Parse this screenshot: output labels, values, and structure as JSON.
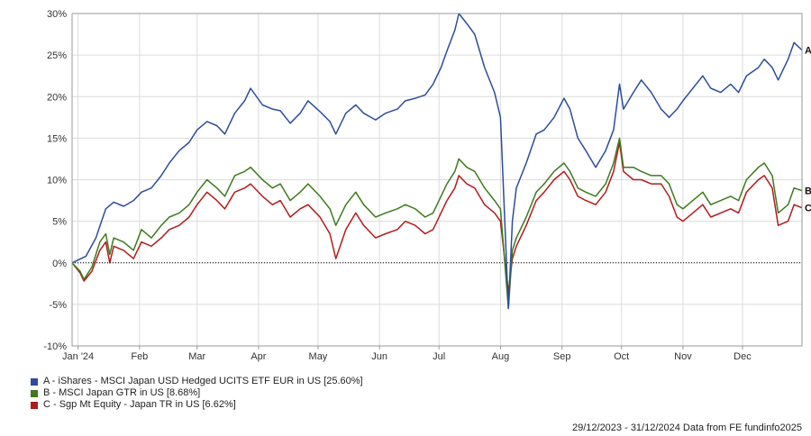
{
  "chart_data": {
    "type": "line",
    "title": "",
    "xlabel": "",
    "ylabel": "",
    "ylim": [
      -10,
      30
    ],
    "yticks": [
      -10,
      -5,
      0,
      5,
      10,
      15,
      20,
      25,
      30
    ],
    "ytick_labels": [
      "-10%",
      "-5%",
      "0%",
      "5%",
      "10%",
      "15%",
      "20%",
      "25%",
      "30%"
    ],
    "x_range": [
      "2023-12-29",
      "2024-12-31"
    ],
    "xticks": [
      {
        "date": "2024-01-01",
        "label": "Jan '24"
      },
      {
        "date": "2024-02-01",
        "label": "Feb"
      },
      {
        "date": "2024-03-01",
        "label": "Mar"
      },
      {
        "date": "2024-04-01",
        "label": "Apr"
      },
      {
        "date": "2024-05-01",
        "label": "May"
      },
      {
        "date": "2024-06-01",
        "label": "Jun"
      },
      {
        "date": "2024-07-01",
        "label": "Jul"
      },
      {
        "date": "2024-08-01",
        "label": "Aug"
      },
      {
        "date": "2024-09-01",
        "label": "Sep"
      },
      {
        "date": "2024-10-01",
        "label": "Oct"
      },
      {
        "date": "2024-11-01",
        "label": "Nov"
      },
      {
        "date": "2024-12-01",
        "label": "Dec"
      }
    ],
    "grid": true,
    "zero_line": "dotted",
    "legend_position": "bottom-left",
    "series": [
      {
        "name": "A - iShares - MSCI Japan USD Hedged UCITS ETF EUR in US [25.60%]",
        "end_label": "A",
        "color": "#2c4d9e",
        "points": [
          [
            "2023-12-29",
            0
          ],
          [
            "2024-01-05",
            0.8
          ],
          [
            "2024-01-10",
            3
          ],
          [
            "2024-01-15",
            6.5
          ],
          [
            "2024-01-19",
            7.3
          ],
          [
            "2024-01-24",
            6.8
          ],
          [
            "2024-01-29",
            7.5
          ],
          [
            "2024-02-02",
            8.5
          ],
          [
            "2024-02-07",
            9
          ],
          [
            "2024-02-12",
            10.5
          ],
          [
            "2024-02-16",
            12
          ],
          [
            "2024-02-21",
            13.5
          ],
          [
            "2024-02-26",
            14.5
          ],
          [
            "2024-03-01",
            16
          ],
          [
            "2024-03-06",
            17
          ],
          [
            "2024-03-11",
            16.5
          ],
          [
            "2024-03-15",
            15.5
          ],
          [
            "2024-03-20",
            18
          ],
          [
            "2024-03-25",
            19.5
          ],
          [
            "2024-03-28",
            21
          ],
          [
            "2024-04-03",
            19
          ],
          [
            "2024-04-08",
            18.5
          ],
          [
            "2024-04-12",
            18.3
          ],
          [
            "2024-04-17",
            16.8
          ],
          [
            "2024-04-22",
            18
          ],
          [
            "2024-04-26",
            19.5
          ],
          [
            "2024-05-02",
            18.2
          ],
          [
            "2024-05-07",
            17
          ],
          [
            "2024-05-10",
            15.5
          ],
          [
            "2024-05-15",
            18
          ],
          [
            "2024-05-20",
            19
          ],
          [
            "2024-05-24",
            18
          ],
          [
            "2024-05-30",
            17.2
          ],
          [
            "2024-06-04",
            18
          ],
          [
            "2024-06-10",
            18.5
          ],
          [
            "2024-06-14",
            19.5
          ],
          [
            "2024-06-19",
            19.8
          ],
          [
            "2024-06-24",
            20.2
          ],
          [
            "2024-06-28",
            21.5
          ],
          [
            "2024-07-02",
            23.5
          ],
          [
            "2024-07-05",
            25.5
          ],
          [
            "2024-07-09",
            28
          ],
          [
            "2024-07-11",
            30
          ],
          [
            "2024-07-15",
            28.8
          ],
          [
            "2024-07-19",
            27.5
          ],
          [
            "2024-07-24",
            23.5
          ],
          [
            "2024-07-29",
            20.5
          ],
          [
            "2024-08-01",
            17.5
          ],
          [
            "2024-08-05",
            -5.5
          ],
          [
            "2024-08-07",
            5
          ],
          [
            "2024-08-09",
            9
          ],
          [
            "2024-08-14",
            12
          ],
          [
            "2024-08-19",
            15.5
          ],
          [
            "2024-08-23",
            16
          ],
          [
            "2024-08-28",
            17.5
          ],
          [
            "2024-09-02",
            19.8
          ],
          [
            "2024-09-05",
            18.5
          ],
          [
            "2024-09-09",
            15
          ],
          [
            "2024-09-13",
            13.5
          ],
          [
            "2024-09-18",
            11.5
          ],
          [
            "2024-09-23",
            13.5
          ],
          [
            "2024-09-27",
            16
          ],
          [
            "2024-09-30",
            21.5
          ],
          [
            "2024-10-02",
            18.5
          ],
          [
            "2024-10-07",
            20.5
          ],
          [
            "2024-10-11",
            22
          ],
          [
            "2024-10-16",
            20.5
          ],
          [
            "2024-10-21",
            18.5
          ],
          [
            "2024-10-25",
            17.5
          ],
          [
            "2024-10-29",
            18.5
          ],
          [
            "2024-11-01",
            19.5
          ],
          [
            "2024-11-06",
            21
          ],
          [
            "2024-11-11",
            22.5
          ],
          [
            "2024-11-15",
            21
          ],
          [
            "2024-11-20",
            20.5
          ],
          [
            "2024-11-25",
            21.5
          ],
          [
            "2024-11-29",
            20.5
          ],
          [
            "2024-12-03",
            22.5
          ],
          [
            "2024-12-09",
            23.5
          ],
          [
            "2024-12-12",
            24.5
          ],
          [
            "2024-12-16",
            23.5
          ],
          [
            "2024-12-19",
            22
          ],
          [
            "2024-12-24",
            24.5
          ],
          [
            "2024-12-27",
            26.5
          ],
          [
            "2024-12-31",
            25.6
          ]
        ]
      },
      {
        "name": "B - MSCI Japan GTR in US [8.68%]",
        "end_label": "B",
        "color": "#3f7a1e",
        "points": [
          [
            "2023-12-29",
            0
          ],
          [
            "2024-01-02",
            -1
          ],
          [
            "2024-01-04",
            -2
          ],
          [
            "2024-01-08",
            -0.5
          ],
          [
            "2024-01-12",
            2.5
          ],
          [
            "2024-01-15",
            3.5
          ],
          [
            "2024-01-17",
            1
          ],
          [
            "2024-01-19",
            3
          ],
          [
            "2024-01-24",
            2.5
          ],
          [
            "2024-01-29",
            1.5
          ],
          [
            "2024-02-02",
            4
          ],
          [
            "2024-02-07",
            3
          ],
          [
            "2024-02-12",
            4.5
          ],
          [
            "2024-02-16",
            5.5
          ],
          [
            "2024-02-21",
            6
          ],
          [
            "2024-02-26",
            7
          ],
          [
            "2024-03-01",
            8.5
          ],
          [
            "2024-03-06",
            10
          ],
          [
            "2024-03-11",
            9
          ],
          [
            "2024-03-15",
            8
          ],
          [
            "2024-03-20",
            10.5
          ],
          [
            "2024-03-25",
            11
          ],
          [
            "2024-03-28",
            11.5
          ],
          [
            "2024-04-03",
            10
          ],
          [
            "2024-04-08",
            9
          ],
          [
            "2024-04-12",
            9.5
          ],
          [
            "2024-04-17",
            7.5
          ],
          [
            "2024-04-22",
            8.5
          ],
          [
            "2024-04-26",
            9.5
          ],
          [
            "2024-05-02",
            8
          ],
          [
            "2024-05-07",
            6.5
          ],
          [
            "2024-05-10",
            4.5
          ],
          [
            "2024-05-15",
            7
          ],
          [
            "2024-05-20",
            8.5
          ],
          [
            "2024-05-24",
            7
          ],
          [
            "2024-05-30",
            5.5
          ],
          [
            "2024-06-04",
            6
          ],
          [
            "2024-06-10",
            6.5
          ],
          [
            "2024-06-14",
            7
          ],
          [
            "2024-06-19",
            6.5
          ],
          [
            "2024-06-24",
            5.5
          ],
          [
            "2024-06-28",
            6
          ],
          [
            "2024-07-02",
            8
          ],
          [
            "2024-07-05",
            9.5
          ],
          [
            "2024-07-09",
            11
          ],
          [
            "2024-07-11",
            12.5
          ],
          [
            "2024-07-15",
            11.5
          ],
          [
            "2024-07-19",
            11
          ],
          [
            "2024-07-24",
            9
          ],
          [
            "2024-07-29",
            7.5
          ],
          [
            "2024-08-01",
            6.5
          ],
          [
            "2024-08-05",
            -5.5
          ],
          [
            "2024-08-07",
            1.5
          ],
          [
            "2024-08-09",
            3
          ],
          [
            "2024-08-14",
            5.5
          ],
          [
            "2024-08-19",
            8.5
          ],
          [
            "2024-08-23",
            9.5
          ],
          [
            "2024-08-28",
            11
          ],
          [
            "2024-09-02",
            12
          ],
          [
            "2024-09-05",
            11
          ],
          [
            "2024-09-09",
            9
          ],
          [
            "2024-09-13",
            8.5
          ],
          [
            "2024-09-18",
            8
          ],
          [
            "2024-09-23",
            9.5
          ],
          [
            "2024-09-27",
            12
          ],
          [
            "2024-09-30",
            15
          ],
          [
            "2024-10-02",
            11.5
          ],
          [
            "2024-10-07",
            11.5
          ],
          [
            "2024-10-11",
            11
          ],
          [
            "2024-10-16",
            10.5
          ],
          [
            "2024-10-21",
            10.5
          ],
          [
            "2024-10-25",
            9.5
          ],
          [
            "2024-10-29",
            7
          ],
          [
            "2024-11-01",
            6.5
          ],
          [
            "2024-11-06",
            7.5
          ],
          [
            "2024-11-11",
            8.5
          ],
          [
            "2024-11-15",
            7
          ],
          [
            "2024-11-20",
            7.5
          ],
          [
            "2024-11-25",
            8
          ],
          [
            "2024-11-29",
            7.5
          ],
          [
            "2024-12-03",
            10
          ],
          [
            "2024-12-09",
            11.5
          ],
          [
            "2024-12-12",
            12
          ],
          [
            "2024-12-16",
            10.5
          ],
          [
            "2024-12-19",
            6
          ],
          [
            "2024-12-24",
            7
          ],
          [
            "2024-12-27",
            9
          ],
          [
            "2024-12-31",
            8.68
          ]
        ]
      },
      {
        "name": "C - Sgp Mt Equity - Japan TR in US [6.62%]",
        "end_label": "C",
        "color": "#b31b1b",
        "points": [
          [
            "2023-12-29",
            0
          ],
          [
            "2024-01-02",
            -1.2
          ],
          [
            "2024-01-04",
            -2.2
          ],
          [
            "2024-01-08",
            -1
          ],
          [
            "2024-01-12",
            1.5
          ],
          [
            "2024-01-15",
            2.5
          ],
          [
            "2024-01-17",
            0
          ],
          [
            "2024-01-19",
            2
          ],
          [
            "2024-01-24",
            1.5
          ],
          [
            "2024-01-29",
            0.5
          ],
          [
            "2024-02-02",
            2.5
          ],
          [
            "2024-02-07",
            2
          ],
          [
            "2024-02-12",
            3
          ],
          [
            "2024-02-16",
            4
          ],
          [
            "2024-02-21",
            4.5
          ],
          [
            "2024-02-26",
            5.5
          ],
          [
            "2024-03-01",
            7
          ],
          [
            "2024-03-06",
            8.5
          ],
          [
            "2024-03-11",
            7.5
          ],
          [
            "2024-03-15",
            6.5
          ],
          [
            "2024-03-20",
            8.5
          ],
          [
            "2024-03-25",
            9
          ],
          [
            "2024-03-28",
            9.5
          ],
          [
            "2024-04-03",
            8
          ],
          [
            "2024-04-08",
            7
          ],
          [
            "2024-04-12",
            7.5
          ],
          [
            "2024-04-17",
            5.5
          ],
          [
            "2024-04-22",
            6.5
          ],
          [
            "2024-04-26",
            7
          ],
          [
            "2024-05-02",
            5.5
          ],
          [
            "2024-05-07",
            3.5
          ],
          [
            "2024-05-10",
            0.5
          ],
          [
            "2024-05-15",
            4
          ],
          [
            "2024-05-20",
            6
          ],
          [
            "2024-05-24",
            4.5
          ],
          [
            "2024-05-30",
            3
          ],
          [
            "2024-06-04",
            3.5
          ],
          [
            "2024-06-10",
            4
          ],
          [
            "2024-06-14",
            5
          ],
          [
            "2024-06-19",
            4.5
          ],
          [
            "2024-06-24",
            3.5
          ],
          [
            "2024-06-28",
            4
          ],
          [
            "2024-07-02",
            6
          ],
          [
            "2024-07-05",
            7.5
          ],
          [
            "2024-07-09",
            9
          ],
          [
            "2024-07-11",
            10.5
          ],
          [
            "2024-07-15",
            9.5
          ],
          [
            "2024-07-19",
            9
          ],
          [
            "2024-07-24",
            7
          ],
          [
            "2024-07-29",
            6
          ],
          [
            "2024-08-01",
            5
          ],
          [
            "2024-08-05",
            -3.5
          ],
          [
            "2024-08-07",
            0.5
          ],
          [
            "2024-08-09",
            2
          ],
          [
            "2024-08-14",
            4.5
          ],
          [
            "2024-08-19",
            7.5
          ],
          [
            "2024-08-23",
            8.5
          ],
          [
            "2024-08-28",
            10
          ],
          [
            "2024-09-02",
            11
          ],
          [
            "2024-09-05",
            10
          ],
          [
            "2024-09-09",
            8
          ],
          [
            "2024-09-13",
            7.5
          ],
          [
            "2024-09-18",
            7
          ],
          [
            "2024-09-23",
            8.5
          ],
          [
            "2024-09-27",
            11
          ],
          [
            "2024-09-30",
            14.5
          ],
          [
            "2024-10-02",
            11
          ],
          [
            "2024-10-07",
            10
          ],
          [
            "2024-10-11",
            10
          ],
          [
            "2024-10-16",
            9.5
          ],
          [
            "2024-10-21",
            9.5
          ],
          [
            "2024-10-25",
            8
          ],
          [
            "2024-10-29",
            5.5
          ],
          [
            "2024-11-01",
            5
          ],
          [
            "2024-11-06",
            6
          ],
          [
            "2024-11-11",
            7
          ],
          [
            "2024-11-15",
            5.5
          ],
          [
            "2024-11-20",
            6
          ],
          [
            "2024-11-25",
            6.5
          ],
          [
            "2024-11-29",
            6
          ],
          [
            "2024-12-03",
            8.5
          ],
          [
            "2024-12-09",
            10
          ],
          [
            "2024-12-12",
            10.5
          ],
          [
            "2024-12-16",
            9
          ],
          [
            "2024-12-19",
            4.5
          ],
          [
            "2024-12-24",
            5
          ],
          [
            "2024-12-27",
            7
          ],
          [
            "2024-12-31",
            6.62
          ]
        ]
      }
    ]
  },
  "footer": {
    "text": "29/12/2023 - 31/12/2024 Data from FE fundinfo2025"
  }
}
